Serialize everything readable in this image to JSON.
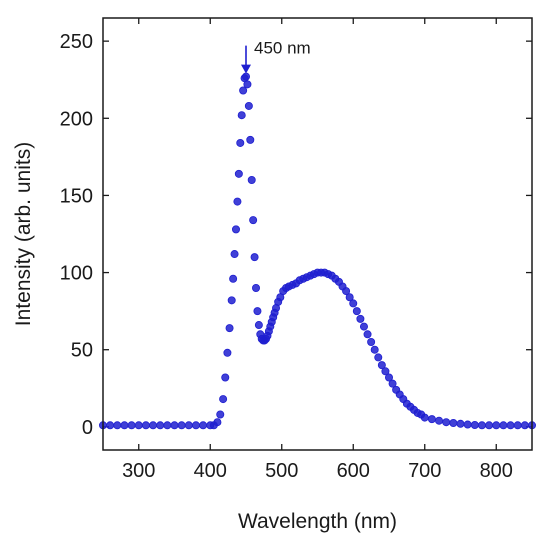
{
  "chart_data": {
    "type": "scatter",
    "xlabel": "Wavelength (nm)",
    "ylabel": "Intensity (arb. units)",
    "xlim": [
      250,
      850
    ],
    "ylim": [
      -15,
      265
    ],
    "xticks": [
      300,
      400,
      500,
      600,
      700,
      800
    ],
    "yticks": [
      0,
      50,
      100,
      150,
      200,
      250
    ],
    "grid": false,
    "marker_color": "#1f1fd0",
    "annotation": {
      "text": "450 nm",
      "x": 450,
      "y": 227
    },
    "series": [
      {
        "x": [
          250,
          260,
          270,
          280,
          290,
          300,
          310,
          320,
          330,
          340,
          350,
          360,
          370,
          380,
          390,
          400,
          405,
          410,
          414,
          418,
          421,
          424,
          427,
          430,
          432,
          434,
          436,
          438,
          440,
          442,
          444,
          446,
          448,
          450,
          452,
          454,
          456,
          458,
          460,
          462,
          464,
          466,
          468,
          470,
          472,
          474,
          476,
          478,
          480,
          482,
          484,
          486,
          488,
          490,
          492,
          495,
          498,
          502,
          506,
          510,
          515,
          520,
          525,
          530,
          535,
          540,
          545,
          550,
          555,
          560,
          565,
          570,
          575,
          580,
          585,
          590,
          595,
          600,
          605,
          610,
          615,
          620,
          625,
          630,
          635,
          640,
          645,
          650,
          655,
          660,
          665,
          670,
          675,
          680,
          685,
          690,
          695,
          700,
          710,
          720,
          730,
          740,
          750,
          760,
          770,
          780,
          790,
          800,
          810,
          820,
          830,
          840,
          850
        ],
        "y": [
          1,
          1,
          1,
          1,
          1,
          1,
          1,
          1,
          1,
          1,
          1,
          1,
          1,
          1,
          1,
          1,
          1,
          3,
          8,
          18,
          32,
          48,
          64,
          82,
          96,
          112,
          128,
          146,
          164,
          184,
          202,
          218,
          226,
          227,
          222,
          208,
          186,
          160,
          134,
          110,
          90,
          75,
          66,
          60,
          57,
          56,
          56,
          57,
          59,
          62,
          65,
          68,
          71,
          74,
          77,
          81,
          84,
          88,
          90,
          91,
          92,
          93,
          95,
          96,
          97,
          98,
          99,
          100,
          100,
          100,
          99,
          98,
          96,
          94,
          91,
          88,
          84,
          80,
          75,
          70,
          65,
          60,
          55,
          50,
          45,
          40,
          36,
          32,
          28,
          24,
          21,
          18,
          15,
          13,
          11,
          9,
          8,
          6,
          5,
          4,
          3,
          2.5,
          2,
          1.5,
          1.2,
          1,
          1,
          1,
          1,
          1,
          1,
          1,
          1
        ]
      }
    ]
  }
}
